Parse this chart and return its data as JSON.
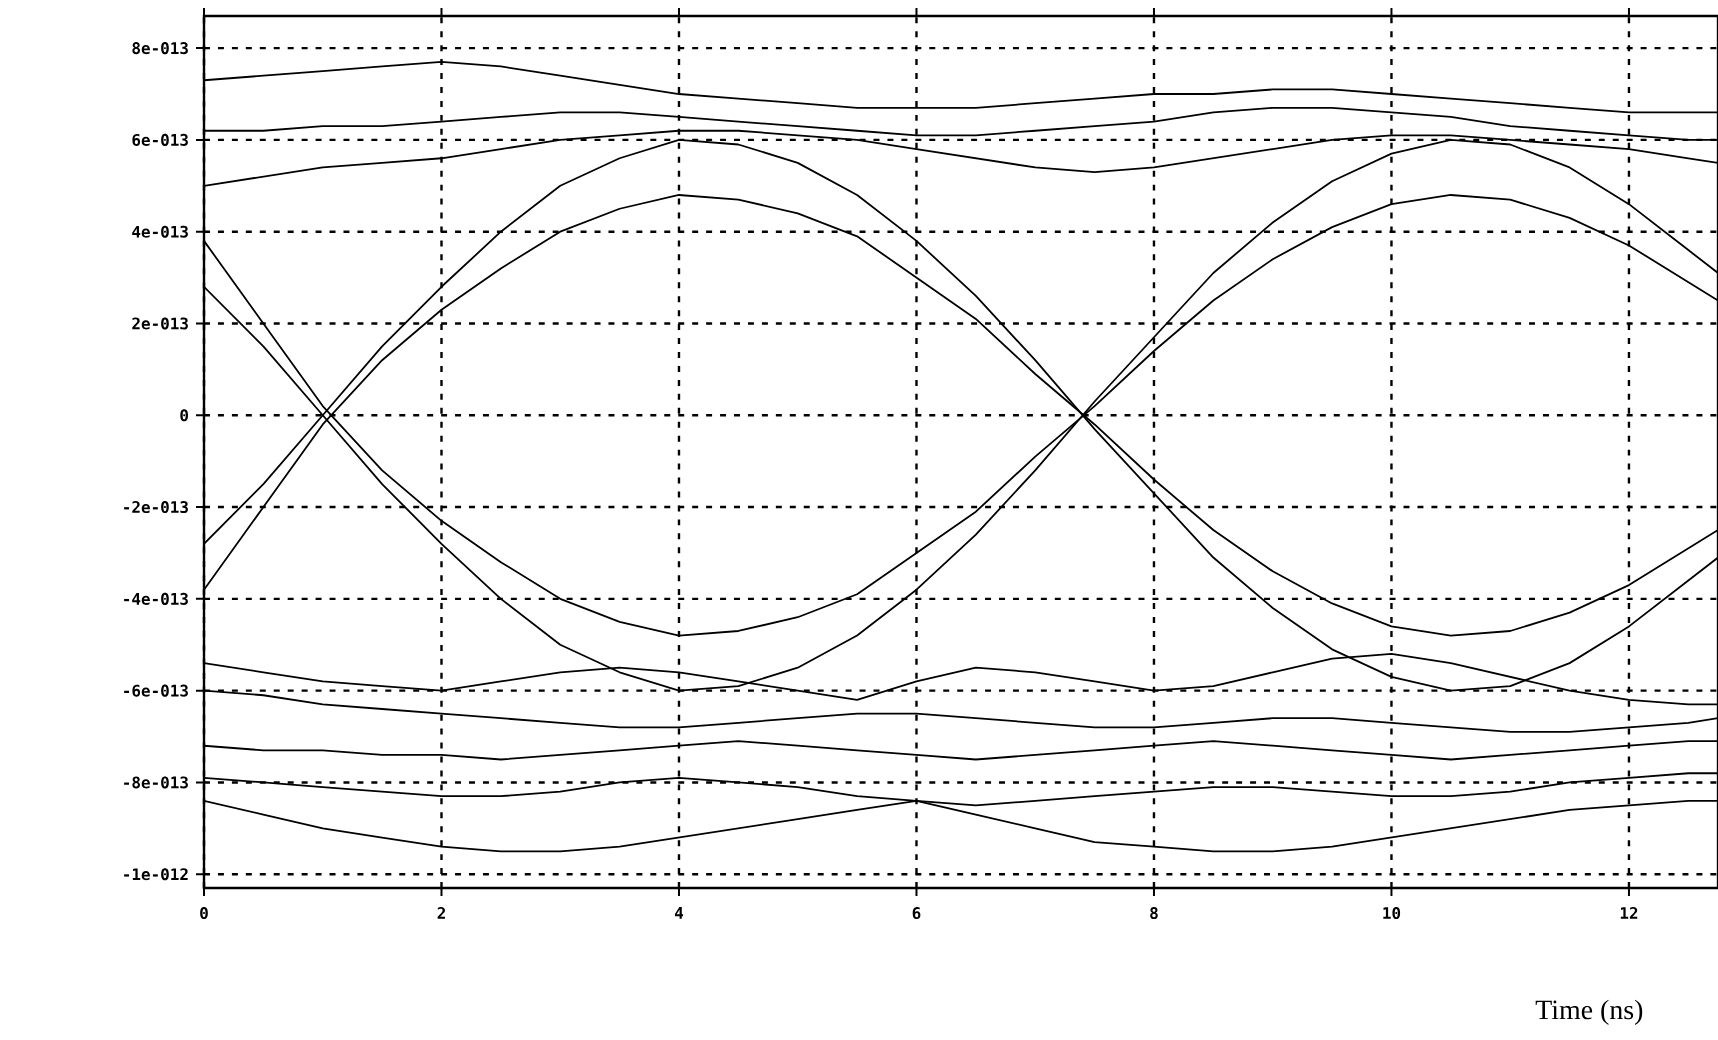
{
  "chart_data": {
    "type": "line",
    "xlabel": "Time (ns)",
    "x": [
      0,
      0.5,
      1,
      1.5,
      2,
      2.5,
      3,
      3.5,
      4,
      4.5,
      5,
      5.5,
      6,
      6.5,
      7,
      7.5,
      8,
      8.5,
      9,
      9.5,
      10,
      10.5,
      11,
      11.5,
      12,
      12.5,
      12.75
    ],
    "xlim": [
      0,
      12.75
    ],
    "ylim": [
      -1.03e-12,
      8.7e-13
    ],
    "xticks": [
      0,
      2,
      4,
      6,
      8,
      10,
      12
    ],
    "yticks": [
      {
        "value": -1e-12,
        "label": "-1e-012"
      },
      {
        "value": -8e-13,
        "label": "-8e-013"
      },
      {
        "value": -6e-13,
        "label": "-6e-013"
      },
      {
        "value": -4e-13,
        "label": "-4e-013"
      },
      {
        "value": -2e-13,
        "label": "-2e-013"
      },
      0,
      {
        "value": 2e-13,
        "label": "2e-013"
      },
      {
        "value": 4e-13,
        "label": "4e-013"
      },
      {
        "value": 6e-13,
        "label": "6e-013"
      },
      {
        "value": 8e-13,
        "label": "8e-013"
      }
    ],
    "grid": true,
    "line_style": "solid",
    "series": [
      {
        "color": "#000000",
        "values": [
          -2.8e-13,
          -1.5e-13,
          0,
          1.5e-13,
          2.8e-13,
          4e-13,
          5e-13,
          5.6e-13,
          6e-13,
          5.9e-13,
          5.5e-13,
          4.8e-13,
          3.8e-13,
          2.6e-13,
          1.2e-13,
          -3e-14,
          -1.7e-13,
          -3.1e-13,
          -4.2e-13,
          -5.1e-13,
          -5.7e-13,
          -6e-13,
          -5.9e-13,
          -5.4e-13,
          -4.6e-13,
          -3.6e-13,
          -3.1e-13
        ]
      },
      {
        "color": "#000000",
        "values": [
          2.8e-13,
          1.5e-13,
          0,
          -1.5e-13,
          -2.8e-13,
          -4e-13,
          -5e-13,
          -5.6e-13,
          -6e-13,
          -5.9e-13,
          -5.5e-13,
          -4.8e-13,
          -3.8e-13,
          -2.6e-13,
          -1.2e-13,
          3e-14,
          1.7e-13,
          3.1e-13,
          4.2e-13,
          5.1e-13,
          5.7e-13,
          6e-13,
          5.9e-13,
          5.4e-13,
          4.6e-13,
          3.6e-13,
          3.1e-13
        ]
      },
      {
        "color": "#000000",
        "values": [
          -3.8e-13,
          -2e-13,
          -2e-14,
          1.2e-13,
          2.3e-13,
          3.2e-13,
          4e-13,
          4.5e-13,
          4.8e-13,
          4.7e-13,
          4.4e-13,
          3.9e-13,
          3e-13,
          2.1e-13,
          9e-14,
          -2e-14,
          -1.4e-13,
          -2.5e-13,
          -3.4e-13,
          -4.1e-13,
          -4.6e-13,
          -4.8e-13,
          -4.7e-13,
          -4.3e-13,
          -3.7e-13,
          -2.9e-13,
          -2.5e-13
        ]
      },
      {
        "color": "#000000",
        "values": [
          3.8e-13,
          2e-13,
          2e-14,
          -1.2e-13,
          -2.3e-13,
          -3.2e-13,
          -4e-13,
          -4.5e-13,
          -4.8e-13,
          -4.7e-13,
          -4.4e-13,
          -3.9e-13,
          -3e-13,
          -2.1e-13,
          -9e-14,
          2e-14,
          1.4e-13,
          2.5e-13,
          3.4e-13,
          4.1e-13,
          4.6e-13,
          4.8e-13,
          4.7e-13,
          4.3e-13,
          3.7e-13,
          2.9e-13,
          2.5e-13
        ]
      },
      {
        "color": "#000000",
        "values": [
          6.2e-13,
          6.2e-13,
          6.3e-13,
          6.3e-13,
          6.4e-13,
          6.5e-13,
          6.6e-13,
          6.6e-13,
          6.5e-13,
          6.4e-13,
          6.3e-13,
          6.2e-13,
          6.1e-13,
          6.1e-13,
          6.2e-13,
          6.3e-13,
          6.4e-13,
          6.6e-13,
          6.7e-13,
          6.7e-13,
          6.6e-13,
          6.5e-13,
          6.3e-13,
          6.2e-13,
          6.1e-13,
          6e-13,
          6e-13
        ]
      },
      {
        "color": "#000000",
        "values": [
          7.3e-13,
          7.4e-13,
          7.5e-13,
          7.6e-13,
          7.7e-13,
          7.6e-13,
          7.4e-13,
          7.2e-13,
          7e-13,
          6.9e-13,
          6.8e-13,
          6.7e-13,
          6.7e-13,
          6.7e-13,
          6.8e-13,
          6.9e-13,
          7e-13,
          7e-13,
          7.1e-13,
          7.1e-13,
          7e-13,
          6.9e-13,
          6.8e-13,
          6.7e-13,
          6.6e-13,
          6.6e-13,
          6.6e-13
        ]
      },
      {
        "color": "#000000",
        "values": [
          5e-13,
          5.2e-13,
          5.4e-13,
          5.5e-13,
          5.6e-13,
          5.8e-13,
          6e-13,
          6.1e-13,
          6.2e-13,
          6.2e-13,
          6.1e-13,
          6e-13,
          5.8e-13,
          5.6e-13,
          5.4e-13,
          5.3e-13,
          5.4e-13,
          5.6e-13,
          5.8e-13,
          6e-13,
          6.1e-13,
          6.1e-13,
          6e-13,
          5.9e-13,
          5.8e-13,
          5.6e-13,
          5.5e-13
        ]
      },
      {
        "color": "#000000",
        "values": [
          -6e-13,
          -6.1e-13,
          -6.3e-13,
          -6.4e-13,
          -6.5e-13,
          -6.6e-13,
          -6.7e-13,
          -6.8e-13,
          -6.8e-13,
          -6.7e-13,
          -6.6e-13,
          -6.5e-13,
          -6.5e-13,
          -6.6e-13,
          -6.7e-13,
          -6.8e-13,
          -6.8e-13,
          -6.7e-13,
          -6.6e-13,
          -6.6e-13,
          -6.7e-13,
          -6.8e-13,
          -6.9e-13,
          -6.9e-13,
          -6.8e-13,
          -6.7e-13,
          -6.6e-13
        ]
      },
      {
        "color": "#000000",
        "values": [
          -8.4e-13,
          -8.7e-13,
          -9e-13,
          -9.2e-13,
          -9.4e-13,
          -9.5e-13,
          -9.5e-13,
          -9.4e-13,
          -9.2e-13,
          -9e-13,
          -8.8e-13,
          -8.6e-13,
          -8.4e-13,
          -8.7e-13,
          -9e-13,
          -9.3e-13,
          -9.4e-13,
          -9.5e-13,
          -9.5e-13,
          -9.4e-13,
          -9.2e-13,
          -9e-13,
          -8.8e-13,
          -8.6e-13,
          -8.5e-13,
          -8.4e-13,
          -8.4e-13
        ]
      },
      {
        "color": "#000000",
        "values": [
          -5.4e-13,
          -5.6e-13,
          -5.8e-13,
          -5.9e-13,
          -6e-13,
          -5.8e-13,
          -5.6e-13,
          -5.5e-13,
          -5.6e-13,
          -5.8e-13,
          -6e-13,
          -6.2e-13,
          -5.8e-13,
          -5.5e-13,
          -5.6e-13,
          -5.8e-13,
          -6e-13,
          -5.9e-13,
          -5.6e-13,
          -5.3e-13,
          -5.2e-13,
          -5.4e-13,
          -5.7e-13,
          -6e-13,
          -6.2e-13,
          -6.3e-13,
          -6.3e-13
        ]
      },
      {
        "color": "#000000",
        "values": [
          -7.9e-13,
          -8e-13,
          -8.1e-13,
          -8.2e-13,
          -8.3e-13,
          -8.3e-13,
          -8.2e-13,
          -8e-13,
          -7.9e-13,
          -8e-13,
          -8.1e-13,
          -8.3e-13,
          -8.4e-13,
          -8.5e-13,
          -8.4e-13,
          -8.3e-13,
          -8.2e-13,
          -8.1e-13,
          -8.1e-13,
          -8.2e-13,
          -8.3e-13,
          -8.3e-13,
          -8.2e-13,
          -8e-13,
          -7.9e-13,
          -7.8e-13,
          -7.8e-13
        ]
      },
      {
        "color": "#000000",
        "values": [
          -7.2e-13,
          -7.3e-13,
          -7.3e-13,
          -7.4e-13,
          -7.4e-13,
          -7.5e-13,
          -7.4e-13,
          -7.3e-13,
          -7.2e-13,
          -7.1e-13,
          -7.2e-13,
          -7.3e-13,
          -7.4e-13,
          -7.5e-13,
          -7.4e-13,
          -7.3e-13,
          -7.2e-13,
          -7.1e-13,
          -7.2e-13,
          -7.3e-13,
          -7.4e-13,
          -7.5e-13,
          -7.4e-13,
          -7.3e-13,
          -7.2e-13,
          -7.1e-13,
          -7.1e-13
        ]
      }
    ]
  }
}
